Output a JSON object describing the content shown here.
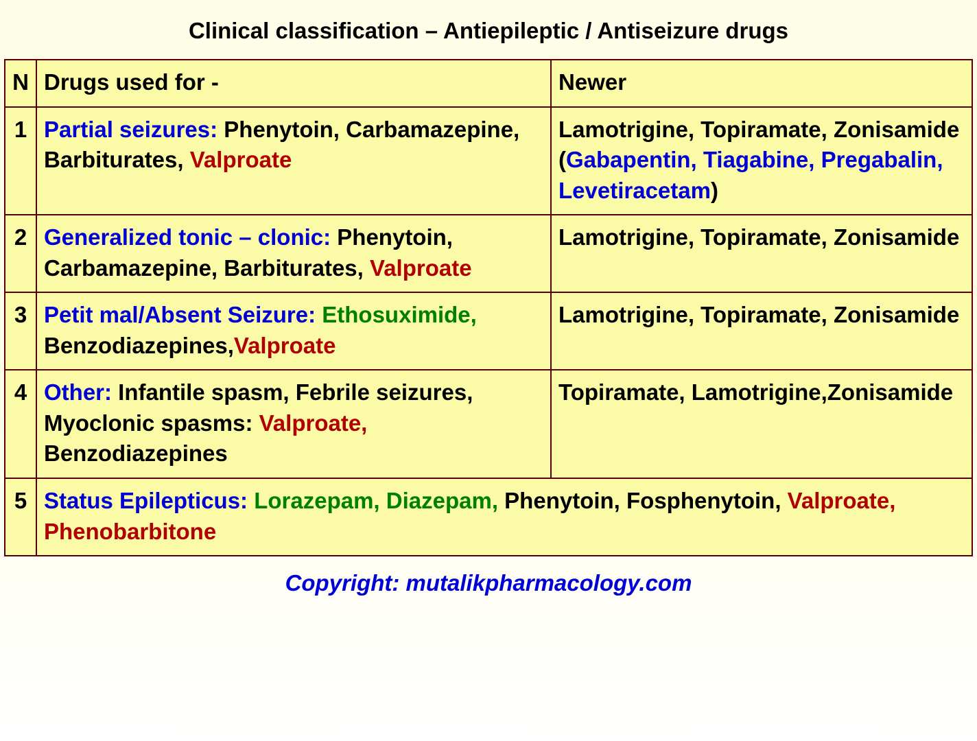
{
  "title": "Clinical classification – Antiepileptic / Antiseizure drugs",
  "headers": {
    "n": "N",
    "drugs": "Drugs used for -",
    "newer": "Newer"
  },
  "colors": {
    "background_cell": "#fbfaa6",
    "border": "#5a0000",
    "page_bg_top": "#fdfde8",
    "text_black": "#000000",
    "text_blue": "#0000d6",
    "text_red": "#b00000",
    "text_green": "#008000"
  },
  "font": {
    "family": "Arial",
    "size_pt": 25,
    "weight": "bold"
  },
  "rows": [
    {
      "n": "1",
      "drugs": [
        {
          "t": "Partial seizures: ",
          "c": "blue"
        },
        {
          "t": "Phenytoin, Carbamazepine, Barbiturates, ",
          "c": "black"
        },
        {
          "t": "Valproate",
          "c": "red"
        }
      ],
      "newer": [
        {
          "t": "Lamotrigine, Topiramate, Zonisamide (",
          "c": "black"
        },
        {
          "t": "Gabapentin, Tiagabine, Pregabalin, Levetiracetam",
          "c": "blue"
        },
        {
          "t": ")",
          "c": "black"
        }
      ]
    },
    {
      "n": "2",
      "drugs": [
        {
          "t": "Generalized tonic – clonic: ",
          "c": "blue"
        },
        {
          "t": "Phenytoin, Carbamazepine, Barbiturates, ",
          "c": "black"
        },
        {
          "t": "Valproate",
          "c": "red"
        }
      ],
      "newer": [
        {
          "t": " Lamotrigine, Topiramate, Zonisamide",
          "c": "black"
        }
      ]
    },
    {
      "n": "3",
      "drugs": [
        {
          "t": "Petit mal/Absent Seizure: ",
          "c": "blue"
        },
        {
          "t": "Ethosuximide, ",
          "c": "green"
        },
        {
          "t": "Benzodiazepines,",
          "c": "black"
        },
        {
          "t": "Valproate",
          "c": "red"
        }
      ],
      "newer": [
        {
          "t": " Lamotrigine, Topiramate, Zonisamide",
          "c": "black"
        }
      ]
    },
    {
      "n": "4",
      "drugs": [
        {
          "t": "Other: ",
          "c": "blue"
        },
        {
          "t": "Infantile spasm, Febrile seizures, Myoclonic spasms: ",
          "c": "black"
        },
        {
          "t": "Valproate, ",
          "c": "red"
        },
        {
          "t": "Benzodiazepines",
          "c": "black"
        }
      ],
      "newer": [
        {
          "t": "Topiramate, Lamotrigine,Zonisamide",
          "c": "black"
        }
      ]
    },
    {
      "n": "5",
      "span": true,
      "drugs": [
        {
          "t": "Status Epilepticus: ",
          "c": "blue"
        },
        {
          "t": "Lorazepam, Diazepam, ",
          "c": "green"
        },
        {
          "t": "Phenytoin, Fosphenytoin, ",
          "c": "black"
        },
        {
          "t": "Valproate, Phenobarbitone",
          "c": "red"
        }
      ]
    }
  ],
  "footer": "Copyright: mutalikpharmacology.com"
}
